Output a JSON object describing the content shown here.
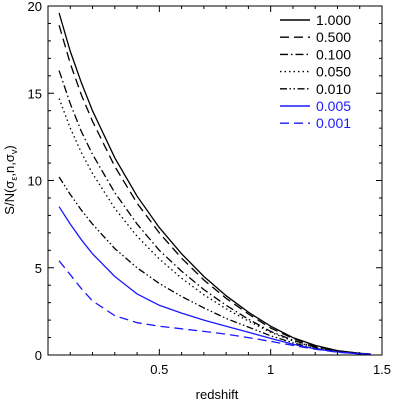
{
  "chart_data": {
    "type": "line",
    "xlabel": "redshift",
    "ylabel": "S/N(σ_ε,n,σ_v)",
    "xlim": [
      0,
      1.5
    ],
    "ylim": [
      0,
      20
    ],
    "xticks": [
      0.5,
      1,
      1.5
    ],
    "xtick_labels": [
      "0.5",
      "1",
      "1.5"
    ],
    "yticks": [
      0,
      5,
      10,
      15,
      20
    ],
    "ytick_labels": [
      "0",
      "5",
      "10",
      "15",
      "20"
    ],
    "grid": false,
    "legend_position": "top-right",
    "series": [
      {
        "name": "1.000",
        "color": "#000000",
        "dash": "solid",
        "x": [
          0.05,
          0.1,
          0.15,
          0.2,
          0.3,
          0.4,
          0.5,
          0.6,
          0.7,
          0.8,
          0.9,
          1.0,
          1.1,
          1.2,
          1.3,
          1.4,
          1.45
        ],
        "y": [
          19.6,
          17.4,
          15.6,
          14.0,
          11.3,
          9.1,
          7.3,
          5.8,
          4.5,
          3.4,
          2.45,
          1.65,
          1.0,
          0.55,
          0.25,
          0.1,
          0.05
        ]
      },
      {
        "name": "0.500",
        "color": "#000000",
        "dash": "dashed",
        "x": [
          0.05,
          0.1,
          0.15,
          0.2,
          0.3,
          0.4,
          0.5,
          0.6,
          0.7,
          0.8,
          0.9,
          1.0,
          1.1,
          1.2,
          1.3,
          1.4,
          1.45
        ],
        "y": [
          18.9,
          16.7,
          14.9,
          13.4,
          10.8,
          8.7,
          7.0,
          5.55,
          4.3,
          3.25,
          2.35,
          1.55,
          0.95,
          0.5,
          0.23,
          0.1,
          0.05
        ]
      },
      {
        "name": "0.100",
        "color": "#000000",
        "dash": "dashdot",
        "x": [
          0.05,
          0.1,
          0.15,
          0.2,
          0.3,
          0.4,
          0.5,
          0.6,
          0.7,
          0.8,
          0.9,
          1.0,
          1.1,
          1.2,
          1.3,
          1.4,
          1.45
        ],
        "y": [
          16.3,
          14.4,
          12.8,
          11.5,
          9.3,
          7.5,
          6.0,
          4.8,
          3.75,
          2.85,
          2.05,
          1.35,
          0.85,
          0.45,
          0.2,
          0.08,
          0.05
        ]
      },
      {
        "name": "0.050",
        "color": "#000000",
        "dash": "dotted",
        "x": [
          0.05,
          0.1,
          0.15,
          0.2,
          0.3,
          0.4,
          0.5,
          0.6,
          0.7,
          0.8,
          0.9,
          1.0,
          1.1,
          1.2,
          1.3,
          1.4,
          1.45
        ],
        "y": [
          14.7,
          13.0,
          11.6,
          10.4,
          8.4,
          6.8,
          5.5,
          4.4,
          3.45,
          2.65,
          1.95,
          1.3,
          0.8,
          0.43,
          0.2,
          0.08,
          0.05
        ]
      },
      {
        "name": "0.010",
        "color": "#000000",
        "dash": "dashdotdot",
        "x": [
          0.05,
          0.1,
          0.15,
          0.2,
          0.3,
          0.4,
          0.5,
          0.6,
          0.7,
          0.8,
          0.9,
          1.0,
          1.1,
          1.2,
          1.3,
          1.4,
          1.45
        ],
        "y": [
          10.2,
          9.2,
          8.3,
          7.5,
          6.1,
          5.0,
          4.1,
          3.35,
          2.7,
          2.1,
          1.6,
          1.1,
          0.7,
          0.38,
          0.18,
          0.07,
          0.05
        ]
      },
      {
        "name": "0.005",
        "color": "#1a1aff",
        "dash": "solid",
        "x": [
          0.05,
          0.1,
          0.15,
          0.2,
          0.3,
          0.4,
          0.5,
          0.6,
          0.7,
          0.8,
          0.9,
          1.0,
          1.1,
          1.2,
          1.3,
          1.4,
          1.45
        ],
        "y": [
          8.5,
          7.5,
          6.6,
          5.8,
          4.5,
          3.5,
          2.85,
          2.4,
          2.0,
          1.65,
          1.3,
          0.95,
          0.62,
          0.35,
          0.17,
          0.07,
          0.05
        ]
      },
      {
        "name": "0.001",
        "color": "#1a1aff",
        "dash": "dashed",
        "x": [
          0.05,
          0.1,
          0.15,
          0.2,
          0.3,
          0.4,
          0.5,
          0.6,
          0.7,
          0.8,
          0.9,
          1.0,
          1.1,
          1.2,
          1.3,
          1.4,
          1.45
        ],
        "y": [
          5.4,
          4.6,
          3.8,
          3.1,
          2.25,
          1.85,
          1.65,
          1.5,
          1.35,
          1.2,
          1.0,
          0.78,
          0.55,
          0.33,
          0.16,
          0.07,
          0.05
        ]
      }
    ]
  }
}
